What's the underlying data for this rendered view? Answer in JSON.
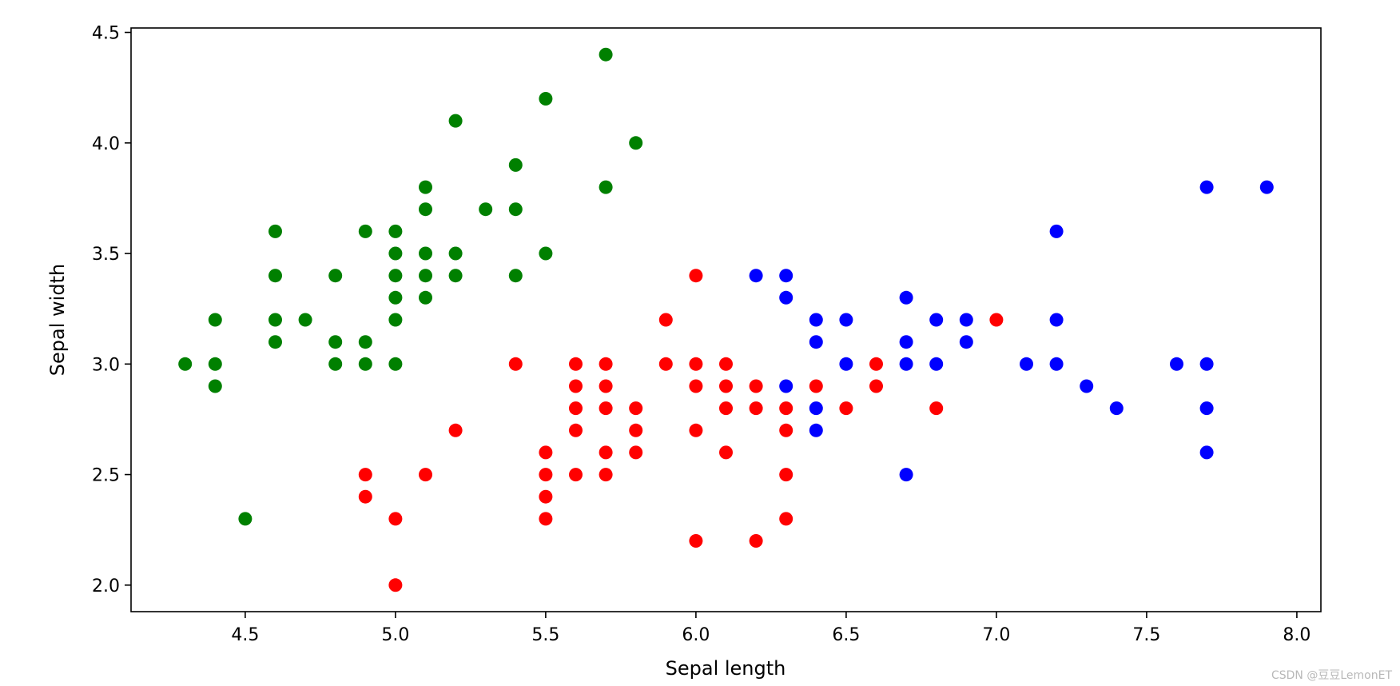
{
  "chart_data": {
    "type": "scatter",
    "title": "",
    "xlabel": "Sepal length",
    "ylabel": "Sepal width",
    "xlim": [
      4.12,
      8.08
    ],
    "ylim": [
      1.88,
      4.52
    ],
    "xticks": [
      4.5,
      5.0,
      5.5,
      6.0,
      6.5,
      7.0,
      7.5,
      8.0
    ],
    "yticks": [
      2.0,
      2.5,
      3.0,
      3.5,
      4.0,
      4.5
    ],
    "xtick_labels": [
      "4.5",
      "5.0",
      "5.5",
      "6.0",
      "6.5",
      "7.0",
      "7.5",
      "8.0"
    ],
    "ytick_labels": [
      "2.0",
      "2.5",
      "3.0",
      "3.5",
      "4.0",
      "4.5"
    ],
    "grid": false,
    "legend": "none",
    "series": [
      {
        "color": "#008000",
        "points": [
          [
            4.3,
            3.0
          ],
          [
            4.4,
            3.2
          ],
          [
            4.4,
            3.0
          ],
          [
            4.4,
            2.9
          ],
          [
            4.5,
            2.3
          ],
          [
            4.6,
            3.6
          ],
          [
            4.6,
            3.4
          ],
          [
            4.6,
            3.2
          ],
          [
            4.6,
            3.1
          ],
          [
            4.7,
            3.2
          ],
          [
            4.8,
            3.4
          ],
          [
            4.8,
            3.1
          ],
          [
            4.8,
            3.0
          ],
          [
            4.9,
            3.6
          ],
          [
            4.9,
            3.1
          ],
          [
            4.9,
            3.0
          ],
          [
            5.0,
            3.6
          ],
          [
            5.0,
            3.5
          ],
          [
            5.0,
            3.4
          ],
          [
            5.0,
            3.3
          ],
          [
            5.0,
            3.2
          ],
          [
            5.0,
            3.0
          ],
          [
            5.1,
            3.8
          ],
          [
            5.1,
            3.7
          ],
          [
            5.1,
            3.5
          ],
          [
            5.1,
            3.4
          ],
          [
            5.1,
            3.3
          ],
          [
            5.2,
            4.1
          ],
          [
            5.2,
            3.5
          ],
          [
            5.2,
            3.4
          ],
          [
            5.3,
            3.7
          ],
          [
            5.4,
            3.9
          ],
          [
            5.4,
            3.7
          ],
          [
            5.4,
            3.4
          ],
          [
            5.5,
            4.2
          ],
          [
            5.5,
            3.5
          ],
          [
            5.7,
            4.4
          ],
          [
            5.7,
            3.8
          ],
          [
            5.8,
            4.0
          ]
        ]
      },
      {
        "color": "#ff0000",
        "points": [
          [
            4.9,
            2.5
          ],
          [
            4.9,
            2.4
          ],
          [
            5.0,
            2.3
          ],
          [
            5.0,
            2.0
          ],
          [
            5.1,
            2.5
          ],
          [
            5.2,
            2.7
          ],
          [
            5.4,
            3.0
          ],
          [
            5.5,
            2.6
          ],
          [
            5.5,
            2.5
          ],
          [
            5.5,
            2.4
          ],
          [
            5.5,
            2.3
          ],
          [
            5.6,
            3.0
          ],
          [
            5.6,
            2.9
          ],
          [
            5.6,
            2.8
          ],
          [
            5.6,
            2.7
          ],
          [
            5.6,
            2.5
          ],
          [
            5.7,
            3.0
          ],
          [
            5.7,
            2.9
          ],
          [
            5.7,
            2.8
          ],
          [
            5.7,
            2.6
          ],
          [
            5.7,
            2.5
          ],
          [
            5.8,
            2.8
          ],
          [
            5.8,
            2.7
          ],
          [
            5.8,
            2.6
          ],
          [
            5.9,
            3.2
          ],
          [
            5.9,
            3.0
          ],
          [
            6.0,
            3.4
          ],
          [
            6.0,
            3.0
          ],
          [
            6.0,
            2.9
          ],
          [
            6.0,
            2.7
          ],
          [
            6.0,
            2.2
          ],
          [
            6.1,
            3.0
          ],
          [
            6.1,
            2.9
          ],
          [
            6.1,
            2.8
          ],
          [
            6.1,
            2.6
          ],
          [
            6.2,
            2.9
          ],
          [
            6.2,
            2.8
          ],
          [
            6.2,
            2.2
          ],
          [
            6.3,
            2.8
          ],
          [
            6.3,
            2.7
          ],
          [
            6.3,
            2.5
          ],
          [
            6.3,
            2.3
          ],
          [
            6.4,
            2.9
          ],
          [
            6.5,
            2.8
          ],
          [
            6.6,
            3.0
          ],
          [
            6.6,
            2.9
          ],
          [
            6.8,
            2.8
          ],
          [
            7.0,
            3.2
          ]
        ]
      },
      {
        "color": "#0000ff",
        "points": [
          [
            6.2,
            3.4
          ],
          [
            6.3,
            3.4
          ],
          [
            6.3,
            3.3
          ],
          [
            6.3,
            2.9
          ],
          [
            6.4,
            3.2
          ],
          [
            6.4,
            3.1
          ],
          [
            6.4,
            2.8
          ],
          [
            6.4,
            2.7
          ],
          [
            6.5,
            3.2
          ],
          [
            6.5,
            3.0
          ],
          [
            6.7,
            3.3
          ],
          [
            6.7,
            3.1
          ],
          [
            6.7,
            3.0
          ],
          [
            6.7,
            2.5
          ],
          [
            6.8,
            3.2
          ],
          [
            6.8,
            3.0
          ],
          [
            6.9,
            3.2
          ],
          [
            6.9,
            3.1
          ],
          [
            7.1,
            3.0
          ],
          [
            7.2,
            3.6
          ],
          [
            7.2,
            3.2
          ],
          [
            7.2,
            3.0
          ],
          [
            7.3,
            2.9
          ],
          [
            7.4,
            2.8
          ],
          [
            7.6,
            3.0
          ],
          [
            7.7,
            3.8
          ],
          [
            7.7,
            3.0
          ],
          [
            7.7,
            2.8
          ],
          [
            7.7,
            2.6
          ],
          [
            7.9,
            3.8
          ]
        ]
      }
    ]
  },
  "watermark": "CSDN @豆豆LemonET"
}
